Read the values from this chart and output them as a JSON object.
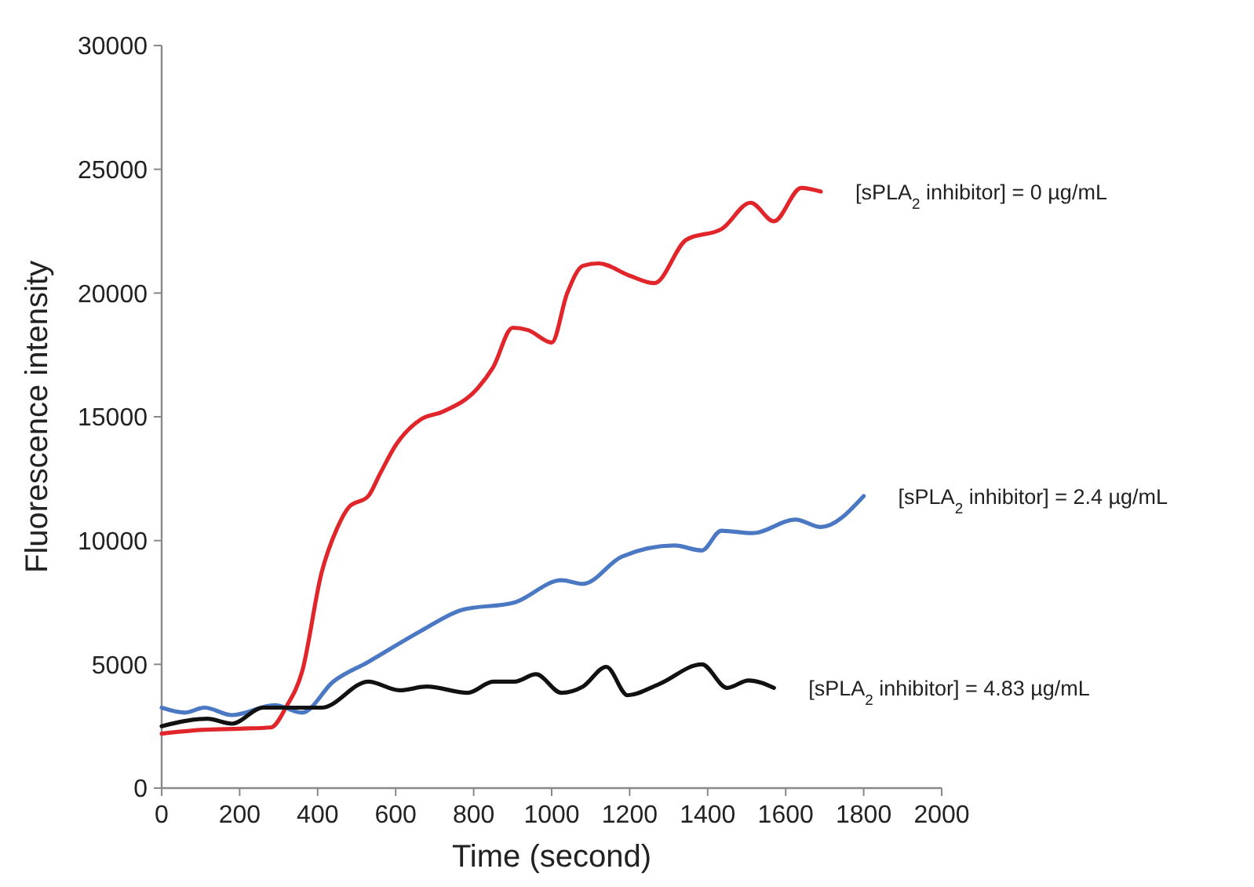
{
  "chart_data": {
    "type": "line",
    "xlabel": "Time (second)",
    "ylabel": "Fluorescence intensity",
    "xlim": [
      0,
      2000
    ],
    "xticks": [
      0,
      200,
      400,
      600,
      800,
      1000,
      1200,
      1400,
      1600,
      1800,
      2000
    ],
    "ylim": [
      0,
      30000
    ],
    "yticks": [
      0,
      5000,
      10000,
      15000,
      20000,
      25000,
      30000
    ],
    "grid": false,
    "marker": "none",
    "line_style": "solid",
    "series": [
      {
        "name": "[sPLA$_{2}$ inhibitor] = 0 µg/mL",
        "color": "#e0262b",
        "x": [
          0,
          100,
          200,
          280,
          320,
          360,
          410,
          450,
          480,
          530,
          560,
          600,
          665,
          720,
          810,
          850,
          900,
          940,
          1000,
          1040,
          1080,
          1120,
          1200,
          1263,
          1345,
          1437,
          1510,
          1570,
          1640,
          1690
        ],
        "values": [
          2200,
          2350,
          2400,
          2450,
          3300,
          4700,
          8700,
          10500,
          11350,
          11800,
          12700,
          13850,
          14900,
          15200,
          16150,
          17000,
          18600,
          18500,
          18000,
          20000,
          21100,
          21200,
          20700,
          20400,
          22150,
          22600,
          23650,
          22900,
          24250,
          24100
        ]
      },
      {
        "name": "[sPLA$_{2}$ inhibitor] = 2.4 µg/mL",
        "color": "#4a78c2",
        "x": [
          0,
          60,
          110,
          180,
          290,
          360,
          440,
          530,
          665,
          770,
          905,
          1025,
          1080,
          1180,
          1315,
          1385,
          1435,
          1515,
          1625,
          1690,
          1800
        ],
        "values": [
          3250,
          3050,
          3250,
          2950,
          3350,
          3050,
          4300,
          5100,
          6350,
          7200,
          7500,
          8400,
          8250,
          9350,
          9800,
          9600,
          10400,
          10300,
          10850,
          10550,
          11800
        ]
      },
      {
        "name": "[sPLA$_{2}$ inhibitor] = 4.83 µg/mL",
        "color": "#111111",
        "x": [
          0,
          117,
          180,
          260,
          410,
          530,
          610,
          680,
          785,
          850,
          905,
          960,
          1025,
          1080,
          1140,
          1195,
          1275,
          1385,
          1450,
          1505,
          1570
        ],
        "values": [
          2500,
          2800,
          2600,
          3250,
          3250,
          4300,
          3950,
          4100,
          3850,
          4300,
          4300,
          4600,
          3850,
          4100,
          4900,
          3750,
          4200,
          5000,
          4050,
          4350,
          4050
        ]
      }
    ]
  }
}
